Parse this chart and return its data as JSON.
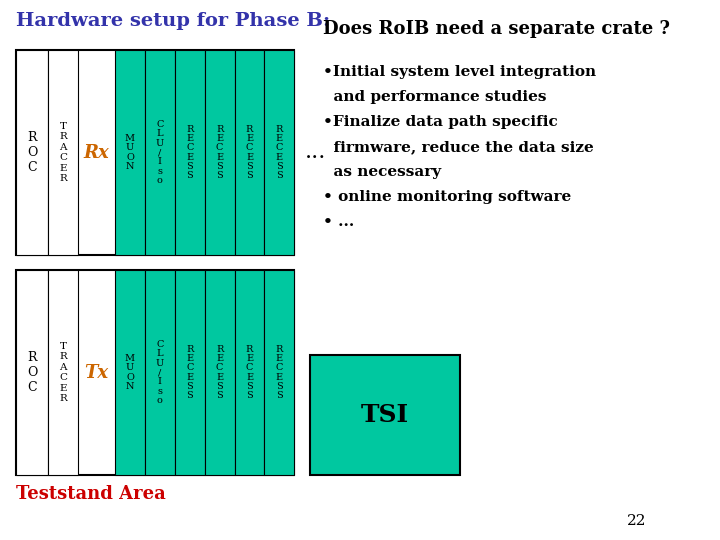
{
  "title_left": "Hardware setup for Phase B:",
  "title_right": "Does RoIB need a separate crate ?",
  "title_left_color": "#3333aa",
  "title_right_color": "#000000",
  "teal_color": "#00c8a0",
  "white_color": "#ffffff",
  "black_color": "#000000",
  "rx_tx_color": "#cc6600",
  "teststand_color": "#cc0000",
  "tsi_text": "TSI",
  "page_number": "22",
  "bullet_lines": [
    "•Initial system level integration",
    "  and performance studies",
    "•Finalize data path specific",
    "  firmware, reduce the data size",
    "  as necessary",
    "• online monitoring software",
    "• ..."
  ]
}
